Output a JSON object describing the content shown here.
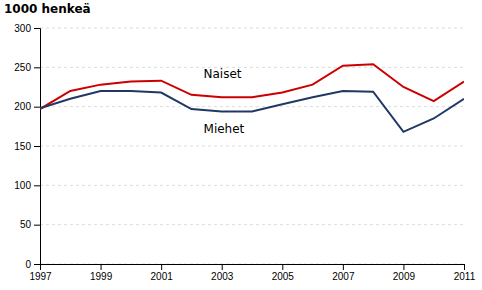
{
  "chart_data": {
    "type": "line",
    "ylabel": "1000 henkeä",
    "x": [
      1997,
      1998,
      1999,
      2000,
      2001,
      2002,
      2003,
      2004,
      2005,
      2006,
      2007,
      2008,
      2009,
      2010,
      2011
    ],
    "series": [
      {
        "color": "#cc0000",
        "values": [
          197,
          220,
          228,
          232,
          233,
          215,
          212,
          212,
          218,
          228,
          252,
          254,
          225,
          207,
          232
        ]
      },
      {
        "color": "#1f3864",
        "values": [
          198,
          210,
          220,
          220,
          218,
          197,
          194,
          194,
          203,
          212,
          220,
          219,
          168,
          185,
          210
        ]
      }
    ],
    "annotations": [
      {
        "text": "Naiset",
        "x": 2002.4,
        "y": 236
      },
      {
        "text": "Miehet",
        "x": 2002.4,
        "y": 178
      }
    ],
    "xlim": [
      1997,
      2011
    ],
    "xticks": [
      1997,
      1999,
      2001,
      2003,
      2005,
      2007,
      2009,
      2011
    ],
    "ylim": [
      0,
      300
    ],
    "yticks": [
      0,
      50,
      100,
      150,
      200,
      250,
      300
    ],
    "grid": true
  }
}
